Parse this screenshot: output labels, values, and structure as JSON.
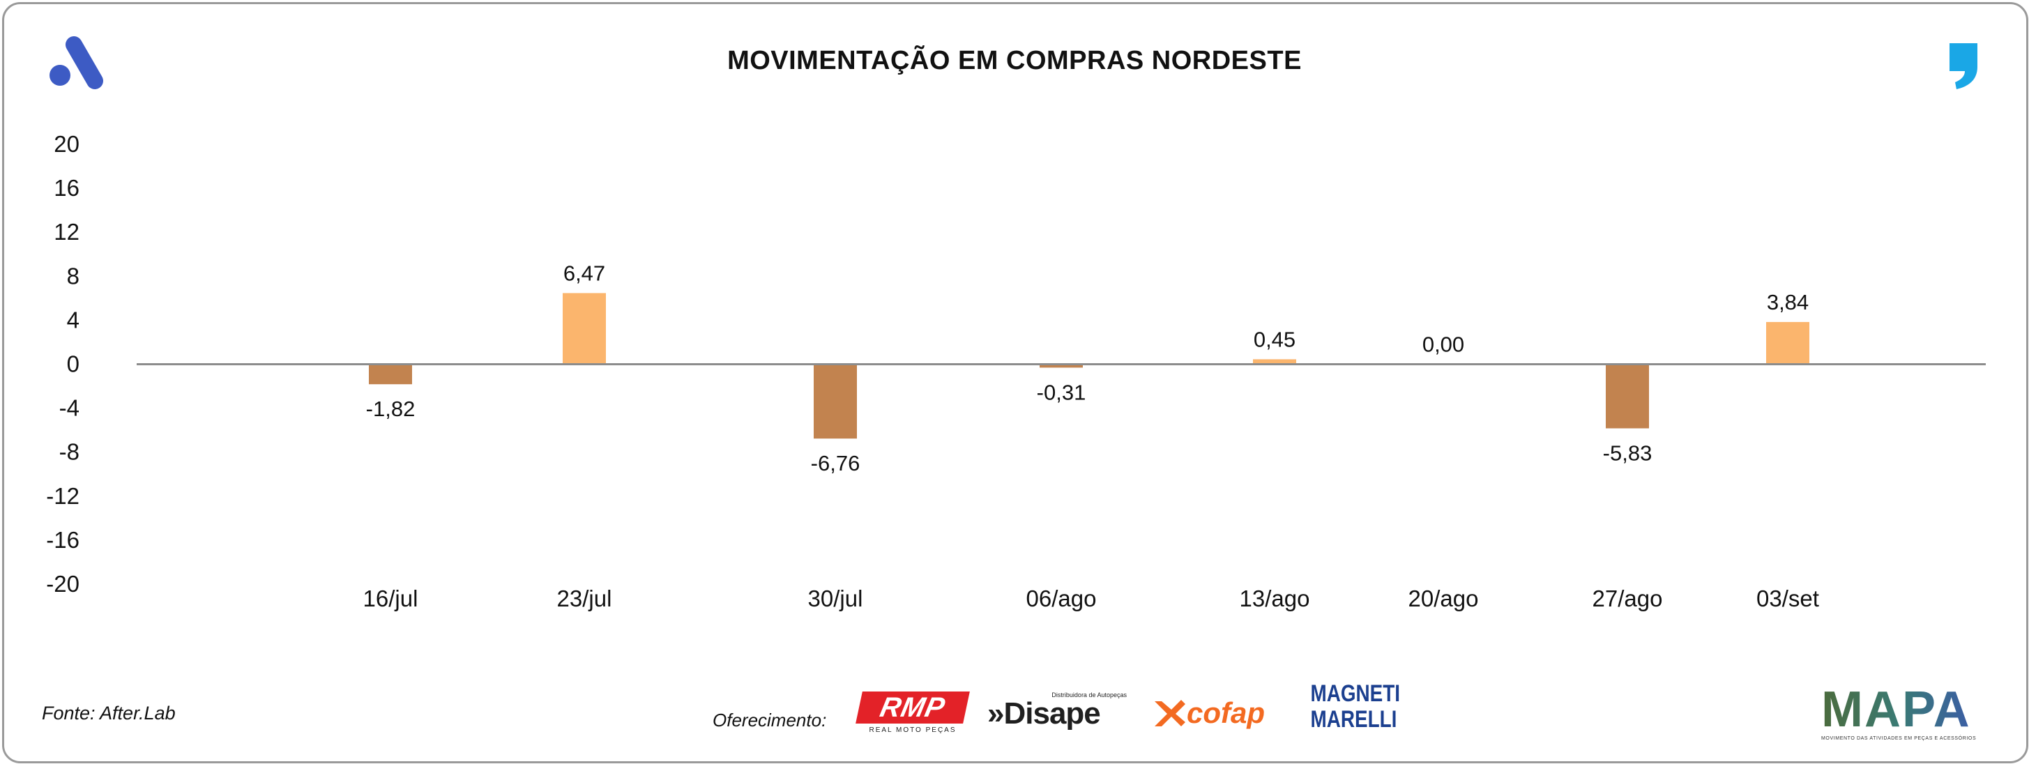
{
  "title": "MOVIMENTAÇÃO EM COMPRAS NORDESTE",
  "source": "Fonte: After.Lab",
  "offer_label": "Oferecimento:",
  "sponsors": {
    "rmp": {
      "name": "RMP",
      "subtitle": "REAL MOTO PEÇAS"
    },
    "disape": {
      "name": "»Disape",
      "subtitle": "Distribuidora de Autopeças"
    },
    "cofap": {
      "name": "cofap"
    },
    "magneti": {
      "line1": "MAGNETI",
      "line2": "MARELLI"
    }
  },
  "mapa": {
    "name": "MAPA",
    "subtitle": "MOVIMENTO DAS ATIVIDADES EM PEÇAS E ACESSÓRIOS"
  },
  "colors": {
    "negative": "#c2834f",
    "positive": "#fbb56d",
    "axis": "#8c8c8c",
    "brand_blue": "#3d5bc4",
    "brand_cyan": "#1aa7e6"
  },
  "chart_data": {
    "type": "bar",
    "title": "MOVIMENTAÇÃO EM COMPRAS NORDESTE",
    "xlabel": "",
    "ylabel": "",
    "ylim": [
      -20,
      20
    ],
    "yticks": [
      "20",
      "16",
      "12",
      "8",
      "4",
      "0",
      "-4",
      "-8",
      "-12",
      "-16",
      "-20"
    ],
    "categories": [
      "16/jul",
      "23/jul",
      "30/jul",
      "06/ago",
      "13/ago",
      "20/ago",
      "27/ago",
      "03/set"
    ],
    "values": [
      -1.82,
      6.47,
      -6.76,
      -0.31,
      0.45,
      0.0,
      -5.83,
      3.84
    ],
    "value_labels": [
      "-1,82",
      "6,47",
      "-6,76",
      "-0,31",
      "0,45",
      "0,00",
      "-5,83",
      "3,84"
    ],
    "grid": false,
    "legend": "none"
  }
}
